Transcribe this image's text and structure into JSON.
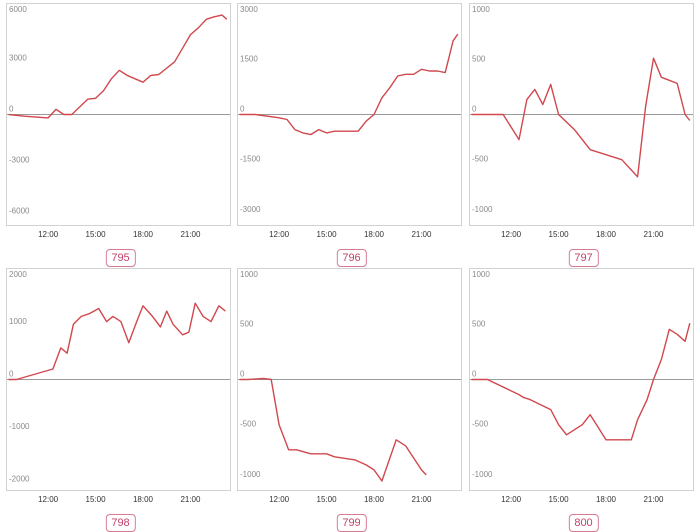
{
  "chart_data": [
    {
      "type": "line",
      "id": "795",
      "ylim": [
        -6500,
        6500
      ],
      "yticks": [
        "6000",
        "3000",
        "0",
        "-3000",
        "-6000"
      ],
      "ytick_values": [
        6000,
        3000,
        0,
        -3000,
        -6000
      ],
      "xticks": [
        "12:00",
        "15:00",
        "18:00",
        "21:00"
      ],
      "xtick_values": [
        12,
        15,
        18,
        21
      ],
      "xlim": [
        9.4,
        23.5
      ],
      "x": [
        9.5,
        10.5,
        12,
        12.5,
        13,
        13.5,
        14.5,
        15,
        15.5,
        16,
        16.5,
        17,
        18,
        18.5,
        19,
        20,
        20.5,
        21,
        21.5,
        22,
        22.5,
        23,
        23.3
      ],
      "y": [
        0,
        -100,
        -200,
        300,
        0,
        0,
        900,
        950,
        1400,
        2100,
        2600,
        2300,
        1900,
        2300,
        2350,
        3100,
        3900,
        4700,
        5100,
        5600,
        5750,
        5850,
        5600
      ]
    },
    {
      "type": "line",
      "id": "796",
      "ylim": [
        -3300,
        3300
      ],
      "yticks": [
        "3000",
        "1500",
        "0",
        "-1500",
        "-3000"
      ],
      "ytick_values": [
        3000,
        1500,
        0,
        -1500,
        -3000
      ],
      "xticks": [
        "12:00",
        "15:00",
        "18:00",
        "21:00"
      ],
      "xtick_values": [
        12,
        15,
        18,
        21
      ],
      "xlim": [
        9.4,
        23.5
      ],
      "x": [
        9.5,
        10.5,
        12,
        12.5,
        13,
        13.5,
        14,
        14.5,
        15,
        15.5,
        16,
        16.5,
        17,
        17.5,
        18,
        18.5,
        19,
        19.5,
        20,
        20.5,
        21,
        21.5,
        22,
        22.5,
        23,
        23.3
      ],
      "y": [
        0,
        0,
        -100,
        -150,
        -450,
        -550,
        -600,
        -450,
        -550,
        -500,
        -500,
        -500,
        -500,
        -200,
        0,
        500,
        800,
        1150,
        1200,
        1200,
        1350,
        1300,
        1300,
        1250,
        2200,
        2400
      ]
    },
    {
      "type": "line",
      "id": "797",
      "ylim": [
        -1100,
        1100
      ],
      "yticks": [
        "1000",
        "500",
        "0",
        "-500",
        "-1000"
      ],
      "ytick_values": [
        1000,
        500,
        0,
        -500,
        -1000
      ],
      "xticks": [
        "12:00",
        "15:00",
        "18:00",
        "21:00"
      ],
      "xtick_values": [
        12,
        15,
        18,
        21
      ],
      "xlim": [
        9.4,
        23.5
      ],
      "x": [
        9.5,
        10.5,
        11.5,
        12.5,
        13,
        13.5,
        14,
        14.5,
        15,
        16,
        17,
        18,
        19,
        20,
        20.5,
        21,
        21.5,
        22,
        22.5,
        23,
        23.3
      ],
      "y": [
        0,
        0,
        0,
        -250,
        150,
        250,
        100,
        300,
        0,
        -150,
        -350,
        -400,
        -450,
        -620,
        80,
        560,
        370,
        340,
        310,
        0,
        -60
      ]
    },
    {
      "type": "line",
      "id": "798",
      "ylim": [
        -2100,
        2100
      ],
      "yticks": [
        "2000",
        "1000",
        "0",
        "-1000",
        "-2000"
      ],
      "ytick_values": [
        2000,
        1000,
        0,
        -1000,
        -2000
      ],
      "xticks": [
        "12:00",
        "15:00",
        "18:00",
        "21:00"
      ],
      "xtick_values": [
        12,
        15,
        18,
        21
      ],
      "xlim": [
        9.4,
        23.5
      ],
      "x": [
        9.5,
        10,
        12.3,
        12.8,
        13.2,
        13.6,
        14.1,
        14.6,
        15.2,
        15.7,
        16.1,
        16.6,
        17.1,
        17.6,
        18,
        18.6,
        19.1,
        19.5,
        19.9,
        20.5,
        20.9,
        21.3,
        21.8,
        22.3,
        22.8,
        23.2
      ],
      "y": [
        0,
        0,
        200,
        600,
        500,
        1050,
        1200,
        1250,
        1350,
        1100,
        1200,
        1100,
        700,
        1100,
        1400,
        1200,
        1000,
        1300,
        1050,
        850,
        900,
        1450,
        1200,
        1100,
        1400,
        1300
      ]
    },
    {
      "type": "line",
      "id": "799",
      "ylim": [
        -1100,
        1100
      ],
      "yticks": [
        "1000",
        "500",
        "0",
        "-500",
        "-1000"
      ],
      "ytick_values": [
        1000,
        500,
        0,
        -500,
        -1000
      ],
      "xticks": [
        "12:00",
        "15:00",
        "18:00",
        "21:00"
      ],
      "xtick_values": [
        12,
        15,
        18,
        21
      ],
      "xlim": [
        9.4,
        23.5
      ],
      "x": [
        9.5,
        10,
        11,
        11.5,
        12,
        12.6,
        13.1,
        14,
        15,
        15.5,
        16.8,
        17.5,
        18,
        18.5,
        19.4,
        20,
        21,
        21.3
      ],
      "y": [
        0,
        0,
        10,
        0,
        -450,
        -700,
        -700,
        -740,
        -740,
        -770,
        -800,
        -850,
        -900,
        -1010,
        -600,
        -660,
        -900,
        -950
      ]
    },
    {
      "type": "line",
      "id": "800",
      "ylim": [
        -1100,
        1100
      ],
      "yticks": [
        "1000",
        "500",
        "0",
        "-500",
        "-1000"
      ],
      "ytick_values": [
        1000,
        500,
        0,
        -500,
        -1000
      ],
      "xticks": [
        "12:00",
        "15:00",
        "18:00",
        "21:00"
      ],
      "xtick_values": [
        12,
        15,
        18,
        21
      ],
      "xlim": [
        9.4,
        23.5
      ],
      "x": [
        9.5,
        10.5,
        12.5,
        12.8,
        13.2,
        14.5,
        15,
        15.5,
        16.5,
        17,
        18,
        19,
        19.6,
        20,
        20.6,
        21,
        21.5,
        22,
        22.5,
        23,
        23.3
      ],
      "y": [
        0,
        0,
        -150,
        -180,
        -200,
        -300,
        -450,
        -550,
        -450,
        -350,
        -600,
        -600,
        -600,
        -400,
        -200,
        0,
        200,
        500,
        450,
        380,
        560
      ]
    }
  ],
  "style": {
    "line_color": "#d0484e",
    "badge_color": "#c2416a",
    "frame_color": "#d2d2d2",
    "zero_line_color": "#9a9a9a"
  }
}
